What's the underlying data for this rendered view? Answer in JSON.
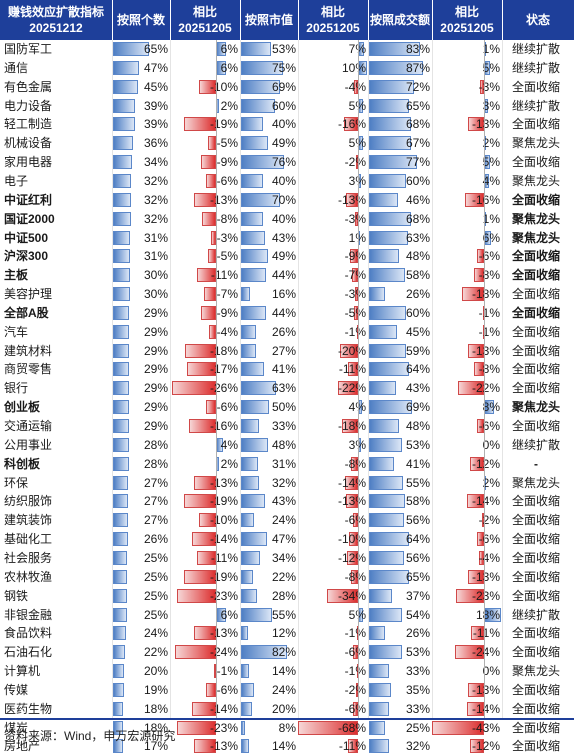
{
  "header": {
    "col1": [
      "赚钱效应扩散指标",
      "20251212"
    ],
    "col2": [
      "按照个数"
    ],
    "col3": [
      "相比",
      "20251205"
    ],
    "col4": [
      "按照市值"
    ],
    "col5": [
      "相比",
      "20251205"
    ],
    "col6": [
      "按照成交额"
    ],
    "col7": [
      "相比",
      "20251205"
    ],
    "col8": [
      "状态"
    ]
  },
  "colors": {
    "header_bg": "#1e3f9a",
    "positive_bar": "#4f7fc4",
    "negative_bar": "#dc2e2e"
  },
  "rows": [
    {
      "name": "国防军工",
      "bold": false,
      "count": 65,
      "count_chg": 6,
      "mcap": 53,
      "mcap_chg": 7,
      "amount": 83,
      "amount_chg": 1,
      "status": "继续扩散"
    },
    {
      "name": "通信",
      "bold": false,
      "count": 47,
      "count_chg": 6,
      "mcap": 75,
      "mcap_chg": 10,
      "amount": 87,
      "amount_chg": 5,
      "status": "继续扩散"
    },
    {
      "name": "有色金属",
      "bold": false,
      "count": 45,
      "count_chg": -10,
      "mcap": 69,
      "mcap_chg": -4,
      "amount": 72,
      "amount_chg": -3,
      "status": "全面收缩"
    },
    {
      "name": "电力设备",
      "bold": false,
      "count": 39,
      "count_chg": 2,
      "mcap": 60,
      "mcap_chg": 5,
      "amount": 65,
      "amount_chg": 3,
      "status": "继续扩散"
    },
    {
      "name": "轻工制造",
      "bold": false,
      "count": 39,
      "count_chg": -19,
      "mcap": 40,
      "mcap_chg": -16,
      "amount": 68,
      "amount_chg": -13,
      "status": "全面收缩"
    },
    {
      "name": "机械设备",
      "bold": false,
      "count": 36,
      "count_chg": -5,
      "mcap": 49,
      "mcap_chg": 5,
      "amount": 67,
      "amount_chg": 2,
      "status": "聚焦龙头"
    },
    {
      "name": "家用电器",
      "bold": false,
      "count": 34,
      "count_chg": -9,
      "mcap": 76,
      "mcap_chg": -2,
      "amount": 77,
      "amount_chg": 5,
      "status": "全面收缩"
    },
    {
      "name": "电子",
      "bold": false,
      "count": 32,
      "count_chg": -6,
      "mcap": 40,
      "mcap_chg": 3,
      "amount": 60,
      "amount_chg": 4,
      "status": "聚焦龙头"
    },
    {
      "name": "中证红利",
      "bold": true,
      "count": 32,
      "count_chg": -13,
      "mcap": 70,
      "mcap_chg": -13,
      "amount": 46,
      "amount_chg": -16,
      "status": "全面收缩"
    },
    {
      "name": "国证2000",
      "bold": true,
      "count": 32,
      "count_chg": -8,
      "mcap": 40,
      "mcap_chg": -3,
      "amount": 68,
      "amount_chg": 1,
      "status": "聚焦龙头"
    },
    {
      "name": "中证500",
      "bold": true,
      "count": 31,
      "count_chg": -3,
      "mcap": 43,
      "mcap_chg": 1,
      "amount": 63,
      "amount_chg": 6,
      "status": "聚焦龙头"
    },
    {
      "name": "沪深300",
      "bold": true,
      "count": 31,
      "count_chg": -5,
      "mcap": 49,
      "mcap_chg": -9,
      "amount": 48,
      "amount_chg": -6,
      "status": "全面收缩"
    },
    {
      "name": "主板",
      "bold": true,
      "count": 30,
      "count_chg": -11,
      "mcap": 44,
      "mcap_chg": -7,
      "amount": 58,
      "amount_chg": -8,
      "status": "全面收缩"
    },
    {
      "name": "美容护理",
      "bold": false,
      "count": 30,
      "count_chg": -7,
      "mcap": 16,
      "mcap_chg": -3,
      "amount": 26,
      "amount_chg": -18,
      "status": "全面收缩"
    },
    {
      "name": "全部A股",
      "bold": true,
      "count": 29,
      "count_chg": -9,
      "mcap": 44,
      "mcap_chg": -5,
      "amount": 60,
      "amount_chg": -1,
      "status": "全面收缩"
    },
    {
      "name": "汽车",
      "bold": false,
      "count": 29,
      "count_chg": -4,
      "mcap": 26,
      "mcap_chg": -1,
      "amount": 45,
      "amount_chg": -1,
      "status": "全面收缩"
    },
    {
      "name": "建筑材料",
      "bold": false,
      "count": 29,
      "count_chg": -18,
      "mcap": 27,
      "mcap_chg": -20,
      "amount": 59,
      "amount_chg": -13,
      "status": "全面收缩"
    },
    {
      "name": "商贸零售",
      "bold": false,
      "count": 29,
      "count_chg": -17,
      "mcap": 41,
      "mcap_chg": -11,
      "amount": 64,
      "amount_chg": -8,
      "status": "全面收缩"
    },
    {
      "name": "银行",
      "bold": false,
      "count": 29,
      "count_chg": -26,
      "mcap": 63,
      "mcap_chg": -22,
      "amount": 43,
      "amount_chg": -22,
      "status": "全面收缩"
    },
    {
      "name": "创业板",
      "bold": true,
      "count": 29,
      "count_chg": -6,
      "mcap": 50,
      "mcap_chg": 4,
      "amount": 69,
      "amount_chg": 8,
      "status": "聚焦龙头"
    },
    {
      "name": "交通运输",
      "bold": false,
      "count": 29,
      "count_chg": -16,
      "mcap": 33,
      "mcap_chg": -18,
      "amount": 48,
      "amount_chg": -6,
      "status": "全面收缩"
    },
    {
      "name": "公用事业",
      "bold": false,
      "count": 28,
      "count_chg": 4,
      "mcap": 48,
      "mcap_chg": 3,
      "amount": 53,
      "amount_chg": 0,
      "status": "继续扩散"
    },
    {
      "name": "科创板",
      "bold": true,
      "count": 28,
      "count_chg": 2,
      "mcap": 31,
      "mcap_chg": -8,
      "amount": 41,
      "amount_chg": -12,
      "status": "-"
    },
    {
      "name": "环保",
      "bold": false,
      "count": 27,
      "count_chg": -13,
      "mcap": 32,
      "mcap_chg": -14,
      "amount": 55,
      "amount_chg": 2,
      "status": "聚焦龙头"
    },
    {
      "name": "纺织服饰",
      "bold": false,
      "count": 27,
      "count_chg": -19,
      "mcap": 43,
      "mcap_chg": -13,
      "amount": 58,
      "amount_chg": -14,
      "status": "全面收缩"
    },
    {
      "name": "建筑装饰",
      "bold": false,
      "count": 27,
      "count_chg": -10,
      "mcap": 24,
      "mcap_chg": -6,
      "amount": 56,
      "amount_chg": -2,
      "status": "全面收缩"
    },
    {
      "name": "基础化工",
      "bold": false,
      "count": 26,
      "count_chg": -14,
      "mcap": 47,
      "mcap_chg": -10,
      "amount": 64,
      "amount_chg": -6,
      "status": "全面收缩"
    },
    {
      "name": "社会服务",
      "bold": false,
      "count": 25,
      "count_chg": -11,
      "mcap": 34,
      "mcap_chg": -12,
      "amount": 56,
      "amount_chg": -4,
      "status": "全面收缩"
    },
    {
      "name": "农林牧渔",
      "bold": false,
      "count": 25,
      "count_chg": -19,
      "mcap": 22,
      "mcap_chg": -8,
      "amount": 65,
      "amount_chg": -13,
      "status": "全面收缩"
    },
    {
      "name": "钢铁",
      "bold": false,
      "count": 25,
      "count_chg": -23,
      "mcap": 28,
      "mcap_chg": -34,
      "amount": 37,
      "amount_chg": -23,
      "status": "全面收缩"
    },
    {
      "name": "非银金融",
      "bold": false,
      "count": 25,
      "count_chg": 6,
      "mcap": 55,
      "mcap_chg": 5,
      "amount": 54,
      "amount_chg": 18,
      "status": "继续扩散"
    },
    {
      "name": "食品饮料",
      "bold": false,
      "count": 24,
      "count_chg": -13,
      "mcap": 12,
      "mcap_chg": -1,
      "amount": 26,
      "amount_chg": -11,
      "status": "全面收缩"
    },
    {
      "name": "石油石化",
      "bold": false,
      "count": 22,
      "count_chg": -24,
      "mcap": 82,
      "mcap_chg": -6,
      "amount": 53,
      "amount_chg": -24,
      "status": "全面收缩"
    },
    {
      "name": "计算机",
      "bold": false,
      "count": 20,
      "count_chg": -1,
      "mcap": 14,
      "mcap_chg": -1,
      "amount": 33,
      "amount_chg": 0,
      "status": "聚焦龙头"
    },
    {
      "name": "传媒",
      "bold": false,
      "count": 19,
      "count_chg": -6,
      "mcap": 24,
      "mcap_chg": -2,
      "amount": 35,
      "amount_chg": -13,
      "status": "全面收缩"
    },
    {
      "name": "医药生物",
      "bold": false,
      "count": 18,
      "count_chg": -14,
      "mcap": 20,
      "mcap_chg": -6,
      "amount": 33,
      "amount_chg": -14,
      "status": "全面收缩"
    },
    {
      "name": "煤炭",
      "bold": false,
      "count": 18,
      "count_chg": -23,
      "mcap": 8,
      "mcap_chg": -68,
      "amount": 25,
      "amount_chg": -43,
      "status": "全面收缩"
    },
    {
      "name": "房地产",
      "bold": false,
      "count": 17,
      "count_chg": -13,
      "mcap": 14,
      "mcap_chg": -11,
      "amount": 32,
      "amount_chg": -12,
      "status": "全面收缩"
    }
  ],
  "footer": {
    "source": "资料来源：Wind，申万宏源研究"
  }
}
